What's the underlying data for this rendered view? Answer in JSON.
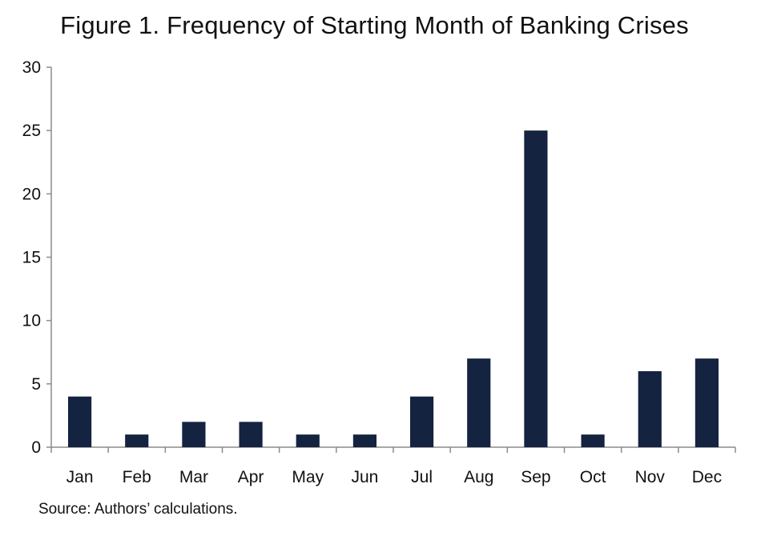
{
  "chart_data": {
    "type": "bar",
    "title": "Figure 1. Frequency of Starting Month of Banking Crises",
    "categories": [
      "Jan",
      "Feb",
      "Mar",
      "Apr",
      "May",
      "Jun",
      "Jul",
      "Aug",
      "Sep",
      "Oct",
      "Nov",
      "Dec"
    ],
    "values": [
      4,
      1,
      2,
      2,
      1,
      1,
      4,
      7,
      25,
      1,
      6,
      7
    ],
    "ylim": [
      0,
      30
    ],
    "yticks": [
      0,
      5,
      10,
      15,
      20,
      25,
      30
    ],
    "grid": false,
    "legend": "none",
    "bar_color": "#14233f",
    "axis_color": "#8c8c8c"
  },
  "source": "Source: Authors’ calculations."
}
